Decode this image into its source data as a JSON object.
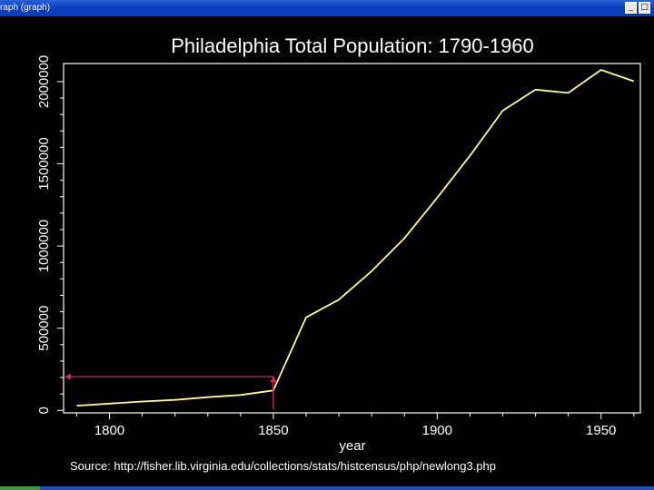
{
  "window": {
    "title": "raph (graph)",
    "minimize_glyph": "_",
    "maximize_glyph": "□"
  },
  "chart_data": {
    "type": "line",
    "title": "Philadelphia Total Population: 1790-1960",
    "xlabel": "year",
    "ylabel": "",
    "source": "Source: http://fisher.lib.virginia.edu/collections/stats/histcensus/php/newlong3.php",
    "xlim": [
      1786,
      1962
    ],
    "ylim": [
      -15000,
      2110000
    ],
    "x_ticks": [
      1800,
      1850,
      1900,
      1950
    ],
    "y_ticks": [
      0,
      500000,
      1000000,
      1500000,
      2000000
    ],
    "grid": false,
    "series": [
      {
        "name": "",
        "color": "#ffff80",
        "x": [
          1790,
          1800,
          1810,
          1820,
          1830,
          1840,
          1850,
          1860,
          1870,
          1880,
          1890,
          1900,
          1910,
          1920,
          1930,
          1940,
          1950,
          1960
        ],
        "y": [
          28522,
          41220,
          53722,
          63802,
          80462,
          93665,
          121376,
          565529,
          674022,
          847170,
          1046964,
          1293697,
          1549008,
          1823779,
          1950961,
          1931334,
          2071605,
          2002512
        ]
      }
    ],
    "annotation": {
      "color": "#e0205a",
      "x": 1850,
      "y": 205000
    }
  },
  "taskbar": {
    "accent": "#1f4fb8"
  }
}
